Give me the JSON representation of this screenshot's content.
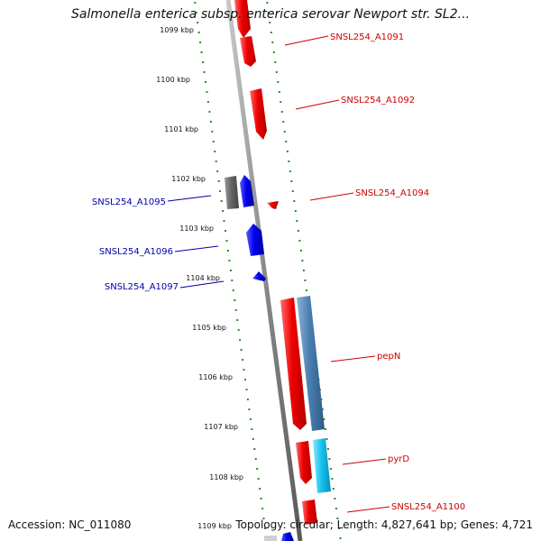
{
  "title": "Salmonella enterica subsp. enterica serovar Newport str. SL2...",
  "footer": {
    "accession": "Accession: NC_011080",
    "summary": "Topology: circular; Length: 4,827,641 bp; Genes: 4,721"
  },
  "colors": {
    "forward_gene": "#e60000",
    "reverse_gene": "#0000e6",
    "forward_label": "#cc0000",
    "reverse_label": "#0000aa",
    "other_feature": "#4682b4",
    "cds_light": "#1ec8f0",
    "pseudo": "#6e6e6e",
    "backbone": "#888888",
    "tick": "#2a8a2a"
  },
  "tick_labels": [
    "1099 kbp",
    "1100 kbp",
    "1101 kbp",
    "1102 kbp",
    "1103 kbp",
    "1104 kbp",
    "1105 kbp",
    "1106 kbp",
    "1107 kbp",
    "1108 kbp",
    "1109 kbp"
  ],
  "genes": {
    "A1091": "SNSL254_A1091",
    "A1092": "SNSL254_A1092",
    "A1094": "SNSL254_A1094",
    "A1095": "SNSL254_A1095",
    "A1096": "SNSL254_A1096",
    "A1097": "SNSL254_A1097",
    "pepN": "pepN",
    "pyrD": "pyrD",
    "A1100": "SNSL254_A1100"
  }
}
